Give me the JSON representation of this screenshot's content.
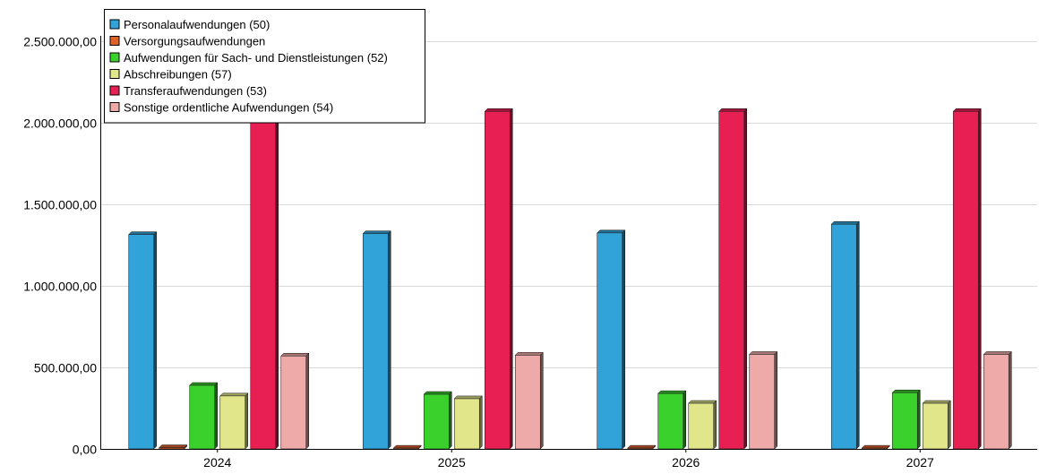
{
  "chart_data": {
    "type": "bar",
    "title": "",
    "xlabel": "",
    "ylabel": "",
    "categories": [
      "2024",
      "2025",
      "2026",
      "2027"
    ],
    "ylim": [
      0,
      2500000
    ],
    "yticks": [
      {
        "value": 0,
        "label": "0,00"
      },
      {
        "value": 500000,
        "label": "500.000,00"
      },
      {
        "value": 1000000,
        "label": "1.000.000,00"
      },
      {
        "value": 1500000,
        "label": "1.500.000,00"
      },
      {
        "value": 2000000,
        "label": "2.000.000,00"
      },
      {
        "value": 2500000,
        "label": "2.500.000,00"
      }
    ],
    "grid": true,
    "legend_position": "top-left",
    "series": [
      {
        "name": "Personalaufwendungen (50)",
        "color": "#31a3d9",
        "values": [
          1315000,
          1320000,
          1325000,
          1378000
        ]
      },
      {
        "name": "Versorgungsaufwendungen",
        "color": "#e0602a",
        "values": [
          8000,
          5000,
          5000,
          5000
        ]
      },
      {
        "name": "Aufwendungen für Sach- und Dienstleistungen (52)",
        "color": "#3bd12d",
        "values": [
          390000,
          335000,
          340000,
          345000
        ]
      },
      {
        "name": "Abschreibungen (57)",
        "color": "#e2e68a",
        "values": [
          325000,
          308000,
          280000,
          280000
        ]
      },
      {
        "name": "Transferaufwendungen (53)",
        "color": "#e81f53",
        "values": [
          2070000,
          2070000,
          2070000,
          2070000
        ]
      },
      {
        "name": "Sonstige ordentliche Aufwendungen (54)",
        "color": "#eeaaa8",
        "values": [
          570000,
          575000,
          580000,
          580000
        ]
      }
    ]
  }
}
